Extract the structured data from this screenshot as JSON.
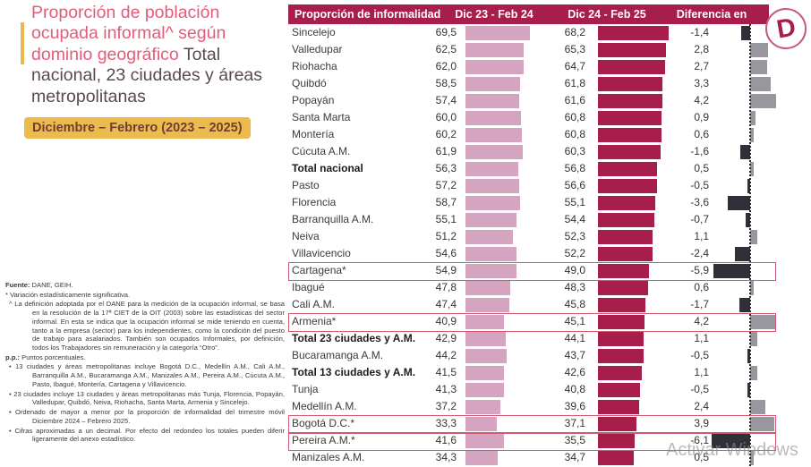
{
  "left_panel": {
    "title_pink": "Proporción de población ocupada informal^ según dominio geográfico",
    "title_dark": "Total nacional, 23 ciudades y áreas metropolitanas",
    "period_badge": "Diciembre – Febrero (2023 – 2025)",
    "footnotes": [
      {
        "lead": "Fuente:",
        "text": " DANE, GEIH.",
        "hang": false
      },
      {
        "lead": "",
        "text": "* Variación estadísticamente significativa.",
        "hang": false
      },
      {
        "lead": "",
        "text": "^ La definición adoptada por el DANE para la medición de la ocupación informal, se basa en la resolución de la 17ª CIET de la OIT (2003) sobre las estadísticas del sector informal. En esta se indica que la ocupación informal se mide teniendo en cuenta, tanto a la empresa (sector) para los independientes, como la condición del puesto de trabajo para asalariados. También son ocupados Informales, por definición, todos los Trabajadores sin remuneración y la categoría “Otro”.",
        "hang": true
      },
      {
        "lead": "p.p.:",
        "text": " Puntos porcentuales.",
        "hang": false
      },
      {
        "lead": "",
        "text": "• 13 ciudades y áreas metropolitanas incluye Bogotá D.C., Medellín A.M., Cali A.M., Barranquilla A.M., Bucaramanga A.M., Manizales A.M., Pereira A.M., Cúcuta A.M., Pasto, Ibagué, Montería, Cartagena y Villavicencio.",
        "hang": true
      },
      {
        "lead": "",
        "text": "• 23 ciudades incluye 13 ciudades y áreas metropolitanas más Tunja, Florencia, Popayán, Valledupar, Quibdó, Neiva, Riohacha, Santa Marta, Armenia y Sincelejo.",
        "hang": true
      },
      {
        "lead": "",
        "text": "• Ordenado de mayor a menor por la proporción de informalidad del trimestre móvil Diciembre 2024 – Febrero 2025.",
        "hang": true
      },
      {
        "lead": "",
        "text": "• Cifras aproximadas a un decimal. Por efecto del redondeo los totales pueden diferir ligeramente del anexo estadístico.",
        "hang": true
      }
    ]
  },
  "logo": {
    "letter": "D"
  },
  "watermark": "Activar Windows",
  "table": {
    "headers": [
      "Proporción de informalidad",
      "Dic 23 - Feb 24",
      "Dic 24 - Feb 25",
      "Diferencia en"
    ],
    "rows": [
      {
        "name": "Sincelejo",
        "v1": "69,5",
        "v2": "68,2",
        "diff": "-1,4",
        "bold": false,
        "highlight": false
      },
      {
        "name": "Valledupar",
        "v1": "62,5",
        "v2": "65,3",
        "diff": "2,8",
        "bold": false,
        "highlight": false
      },
      {
        "name": "Riohacha",
        "v1": "62,0",
        "v2": "64,7",
        "diff": "2,7",
        "bold": false,
        "highlight": false
      },
      {
        "name": "Quibdó",
        "v1": "58,5",
        "v2": "61,8",
        "diff": "3,3",
        "bold": false,
        "highlight": false
      },
      {
        "name": "Popayán",
        "v1": "57,4",
        "v2": "61,6",
        "diff": "4,2",
        "bold": false,
        "highlight": false
      },
      {
        "name": "Santa Marta",
        "v1": "60,0",
        "v2": "60,8",
        "diff": "0,9",
        "bold": false,
        "highlight": false
      },
      {
        "name": "Montería",
        "v1": "60,2",
        "v2": "60,8",
        "diff": "0,6",
        "bold": false,
        "highlight": false
      },
      {
        "name": "Cúcuta A.M.",
        "v1": "61,9",
        "v2": "60,3",
        "diff": "-1,6",
        "bold": false,
        "highlight": false
      },
      {
        "name": "Total nacional",
        "v1": "56,3",
        "v2": "56,8",
        "diff": "0,5",
        "bold": true,
        "highlight": false
      },
      {
        "name": "Pasto",
        "v1": "57,2",
        "v2": "56,6",
        "diff": "-0,5",
        "bold": false,
        "highlight": false
      },
      {
        "name": "Florencia",
        "v1": "58,7",
        "v2": "55,1",
        "diff": "-3,6",
        "bold": false,
        "highlight": false
      },
      {
        "name": "Barranquilla A.M.",
        "v1": "55,1",
        "v2": "54,4",
        "diff": "-0,7",
        "bold": false,
        "highlight": false
      },
      {
        "name": "Neiva",
        "v1": "51,2",
        "v2": "52,3",
        "diff": "1,1",
        "bold": false,
        "highlight": false
      },
      {
        "name": "Villavicencio",
        "v1": "54,6",
        "v2": "52,2",
        "diff": "-2,4",
        "bold": false,
        "highlight": false
      },
      {
        "name": "Cartagena*",
        "v1": "54,9",
        "v2": "49,0",
        "diff": "-5,9",
        "bold": false,
        "highlight": true
      },
      {
        "name": "Ibagué",
        "v1": "47,8",
        "v2": "48,3",
        "diff": "0,6",
        "bold": false,
        "highlight": false
      },
      {
        "name": "Cali A.M.",
        "v1": "47,4",
        "v2": "45,8",
        "diff": "-1,7",
        "bold": false,
        "highlight": false
      },
      {
        "name": "Armenia*",
        "v1": "40,9",
        "v2": "45,1",
        "diff": "4,2",
        "bold": false,
        "highlight": true
      },
      {
        "name": "Total 23 ciudades y A.M.",
        "v1": "42,9",
        "v2": "44,1",
        "diff": "1,1",
        "bold": true,
        "highlight": false
      },
      {
        "name": "Bucaramanga A.M.",
        "v1": "44,2",
        "v2": "43,7",
        "diff": "-0,5",
        "bold": false,
        "highlight": false
      },
      {
        "name": "Total 13 ciudades y A.M.",
        "v1": "41,5",
        "v2": "42,6",
        "diff": "1,1",
        "bold": true,
        "highlight": false
      },
      {
        "name": "Tunja",
        "v1": "41,3",
        "v2": "40,8",
        "diff": "-0,5",
        "bold": false,
        "highlight": false
      },
      {
        "name": "Medellín A.M.",
        "v1": "37,2",
        "v2": "39,6",
        "diff": "2,4",
        "bold": false,
        "highlight": false
      },
      {
        "name": "Bogotá D.C.*",
        "v1": "33,3",
        "v2": "37,1",
        "diff": "3,9",
        "bold": false,
        "highlight": true
      },
      {
        "name": "Pereira A.M.*",
        "v1": "41,6",
        "v2": "35,5",
        "diff": "-6,1",
        "bold": false,
        "highlight": true
      },
      {
        "name": "Manizales A.M.",
        "v1": "34,3",
        "v2": "34,7",
        "diff": "0,5",
        "bold": false,
        "highlight": false
      }
    ]
  },
  "colors": {
    "crimson": "#A71D4B",
    "lightpink": "#D4A4C0",
    "neg": "#303038",
    "pos": "#97979D",
    "titlepink": "#E25C7B",
    "titledark": "#5A4952",
    "badgebg": "#EDBB4D",
    "badgetext": "#6D4036",
    "hlborder": "#D05A72",
    "accentbar": "#E9B94C",
    "watermark": "#8F8F8F"
  },
  "chart_data": {
    "type": "bar",
    "title": "Proporción de población ocupada informal^ según dominio geográfico",
    "subtitle": "Total nacional, 23 ciudades y áreas metropolitanas — Diciembre – Febrero (2023 – 2025)",
    "xlabel": "Proporción de informalidad (%)",
    "ylabel": "Dominio geográfico",
    "orientation": "horizontal",
    "grid": false,
    "legend_position": "column-headers",
    "xlim": [
      0,
      70
    ],
    "diff_xlim": [
      -7,
      5
    ],
    "categories": [
      "Sincelejo",
      "Valledupar",
      "Riohacha",
      "Quibdó",
      "Popayán",
      "Santa Marta",
      "Montería",
      "Cúcuta A.M.",
      "Total nacional",
      "Pasto",
      "Florencia",
      "Barranquilla A.M.",
      "Neiva",
      "Villavicencio",
      "Cartagena*",
      "Ibagué",
      "Cali A.M.",
      "Armenia*",
      "Total 23 ciudades y A.M.",
      "Bucaramanga A.M.",
      "Total 13 ciudades y A.M.",
      "Tunja",
      "Medellín A.M.",
      "Bogotá D.C.*",
      "Pereira A.M.*",
      "Manizales A.M."
    ],
    "series": [
      {
        "name": "Dic 23 - Feb 24",
        "values": [
          69.5,
          62.5,
          62.0,
          58.5,
          57.4,
          60.0,
          60.2,
          61.9,
          56.3,
          57.2,
          58.7,
          55.1,
          51.2,
          54.6,
          54.9,
          47.8,
          47.4,
          40.9,
          42.9,
          44.2,
          41.5,
          41.3,
          37.2,
          33.3,
          41.6,
          34.3
        ]
      },
      {
        "name": "Dic 24 - Feb 25",
        "values": [
          68.2,
          65.3,
          64.7,
          61.8,
          61.6,
          60.8,
          60.8,
          60.3,
          56.8,
          56.6,
          55.1,
          54.4,
          52.3,
          52.2,
          49.0,
          48.3,
          45.8,
          45.1,
          44.1,
          43.7,
          42.6,
          40.8,
          39.6,
          37.1,
          35.5,
          34.7
        ]
      },
      {
        "name": "Diferencia en p.p.",
        "values": [
          -1.4,
          2.8,
          2.7,
          3.3,
          4.2,
          0.9,
          0.6,
          -1.6,
          0.5,
          -0.5,
          -3.6,
          -0.7,
          1.1,
          -2.4,
          -5.9,
          0.6,
          -1.7,
          4.2,
          1.1,
          -0.5,
          1.1,
          -0.5,
          2.4,
          3.9,
          -6.1,
          0.5
        ]
      }
    ],
    "annotations": [
      "* Variación estadísticamente significativa (filas resaltadas: Cartagena*, Armenia*, Bogotá D.C.*, Pereira A.M.*)"
    ]
  }
}
